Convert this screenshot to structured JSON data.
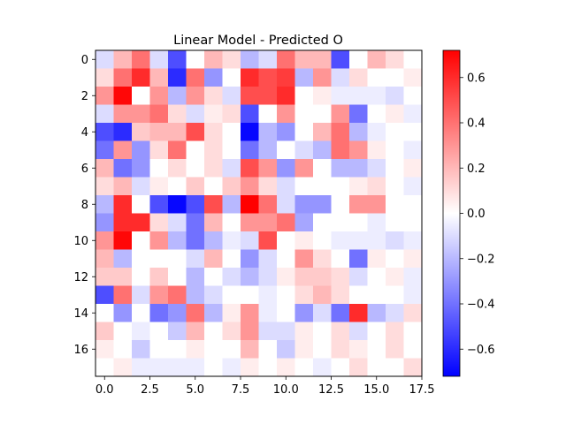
{
  "chart_data": {
    "type": "heatmap",
    "title": "Linear Model - Predicted O",
    "xlabel": "",
    "ylabel": "",
    "x_ticks": [
      "0.0",
      "2.5",
      "5.0",
      "7.5",
      "10.0",
      "12.5",
      "15.0",
      "17.5"
    ],
    "y_ticks": [
      "0",
      "2",
      "4",
      "6",
      "8",
      "10",
      "12",
      "14",
      "16"
    ],
    "colorbar_ticks": [
      "0.6",
      "0.4",
      "0.2",
      "0.0",
      "−0.2",
      "−0.4",
      "−0.6"
    ],
    "rows": 18,
    "cols": 18,
    "vmin": -0.72,
    "vmax": 0.72,
    "colormap": "bwr",
    "values": [
      [
        -0.1,
        0.2,
        0.4,
        -0.1,
        -0.5,
        0.0,
        0.2,
        0.1,
        -0.2,
        -0.1,
        0.4,
        0.2,
        0.2,
        -0.5,
        0.0,
        0.2,
        0.1,
        0.0
      ],
      [
        0.1,
        0.4,
        0.6,
        0.2,
        -0.6,
        0.4,
        -0.3,
        0.0,
        0.6,
        0.5,
        0.55,
        -0.2,
        0.3,
        -0.1,
        0.1,
        0.0,
        0.0,
        0.05
      ],
      [
        0.3,
        0.7,
        0.0,
        0.3,
        -0.2,
        0.3,
        0.1,
        -0.1,
        0.5,
        0.5,
        0.6,
        0.0,
        0.05,
        -0.05,
        -0.05,
        -0.05,
        -0.1,
        0.0
      ],
      [
        -0.1,
        0.3,
        0.3,
        0.4,
        0.1,
        -0.1,
        0.05,
        0.1,
        -0.5,
        0.0,
        0.3,
        0.0,
        0.0,
        0.3,
        -0.4,
        0.0,
        0.05,
        -0.05
      ],
      [
        -0.5,
        -0.6,
        0.15,
        0.2,
        0.2,
        0.5,
        0.1,
        0.0,
        -0.7,
        -0.2,
        -0.3,
        0.0,
        0.2,
        0.4,
        -0.2,
        -0.05,
        0.0,
        0.0
      ],
      [
        -0.4,
        0.3,
        -0.3,
        0.1,
        0.4,
        0.0,
        0.1,
        0.0,
        -0.4,
        -0.2,
        0.0,
        -0.1,
        -0.2,
        0.4,
        0.3,
        0.05,
        0.0,
        -0.05
      ],
      [
        0.2,
        -0.4,
        -0.3,
        0.0,
        0.1,
        0.0,
        0.1,
        -0.1,
        0.5,
        0.3,
        -0.3,
        0.3,
        0.0,
        -0.2,
        -0.2,
        -0.1,
        0.0,
        0.05
      ],
      [
        0.1,
        0.2,
        -0.1,
        0.05,
        0.0,
        0.15,
        0.0,
        0.15,
        0.3,
        0.1,
        -0.1,
        0.0,
        0.0,
        0.0,
        0.05,
        0.1,
        0.0,
        -0.05
      ],
      [
        -0.2,
        0.6,
        0.0,
        -0.5,
        -0.7,
        -0.5,
        0.5,
        -0.2,
        0.72,
        0.4,
        -0.1,
        -0.3,
        -0.3,
        0.0,
        0.3,
        0.3,
        0.0,
        0.0
      ],
      [
        -0.3,
        0.6,
        0.6,
        0.1,
        -0.1,
        -0.4,
        0.2,
        0.0,
        0.3,
        0.3,
        0.4,
        -0.25,
        0.0,
        0.0,
        0.0,
        -0.05,
        0.0,
        0.0
      ],
      [
        0.3,
        0.7,
        0.0,
        0.3,
        -0.2,
        -0.4,
        -0.2,
        -0.05,
        -0.1,
        0.5,
        0.0,
        0.05,
        0.0,
        -0.05,
        -0.05,
        -0.05,
        -0.1,
        -0.05
      ],
      [
        0.2,
        -0.2,
        0.0,
        0.0,
        0.0,
        -0.1,
        0.2,
        0.0,
        -0.3,
        -0.1,
        0.0,
        0.3,
        0.1,
        0.0,
        -0.4,
        0.05,
        0.0,
        0.05
      ],
      [
        0.15,
        0.15,
        0.0,
        0.15,
        0.0,
        -0.2,
        0.0,
        -0.1,
        -0.2,
        -0.1,
        0.05,
        0.15,
        0.15,
        0.1,
        -0.1,
        0.0,
        0.05,
        -0.05
      ],
      [
        -0.5,
        0.4,
        -0.1,
        0.3,
        0.4,
        -0.2,
        -0.1,
        0.0,
        0.0,
        -0.05,
        0.0,
        0.1,
        0.2,
        0.1,
        0.0,
        0.0,
        0.0,
        -0.05
      ],
      [
        0.0,
        -0.3,
        0.0,
        -0.4,
        -0.3,
        0.4,
        -0.2,
        0.05,
        0.3,
        -0.05,
        0.0,
        -0.3,
        -0.1,
        -0.4,
        0.6,
        -0.2,
        -0.1,
        0.1
      ],
      [
        0.15,
        0.0,
        -0.05,
        0.0,
        -0.15,
        0.2,
        0.0,
        0.1,
        0.3,
        -0.1,
        -0.1,
        0.05,
        0.0,
        0.1,
        -0.1,
        0.0,
        0.1,
        0.0
      ],
      [
        0.05,
        0.0,
        -0.15,
        0.0,
        0.0,
        0.05,
        0.0,
        0.0,
        0.2,
        0.0,
        -0.15,
        0.05,
        0.0,
        0.1,
        0.05,
        0.0,
        0.1,
        0.0
      ],
      [
        0.0,
        0.05,
        -0.05,
        -0.05,
        -0.05,
        -0.05,
        0.0,
        -0.05,
        0.05,
        0.0,
        0.05,
        0.0,
        -0.05,
        0.0,
        0.1,
        0.0,
        0.0,
        0.1
      ]
    ]
  }
}
